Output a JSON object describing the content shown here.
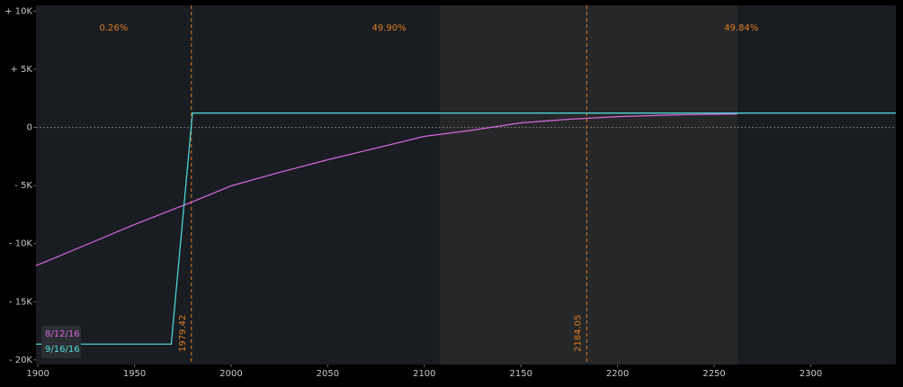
{
  "chart_data": {
    "type": "line",
    "xlim": [
      1899,
      2344
    ],
    "ylim": [
      -20400,
      10500
    ],
    "xticks": [
      1900,
      1950,
      2000,
      2050,
      2100,
      2150,
      2200,
      2250,
      2300
    ],
    "yticks": [
      {
        "value": 10000,
        "label": "+ 10K"
      },
      {
        "value": 5000,
        "label": "+ 5K"
      },
      0,
      {
        "value": -5000,
        "label": "- 5K"
      },
      {
        "value": -10000,
        "label": "- 10K"
      },
      {
        "value": -15000,
        "label": "- 15K"
      },
      {
        "value": -20000,
        "label": "- 20K"
      }
    ],
    "zero_line": true,
    "highlight_range": [
      2108,
      2262
    ],
    "vlines": [
      1979.42,
      2184.05
    ],
    "zone_labels": [
      "0.26%",
      "49.90%",
      "49.84%"
    ],
    "legend": "bottom-left",
    "series": [
      {
        "name": "8/12/16",
        "color": "#d966e0",
        "x": [
          1899,
          1925,
          1950,
          1980,
          2000,
          2025,
          2050,
          2075,
          2100,
          2125,
          2150,
          2175,
          2200,
          2230,
          2262
        ],
        "values": [
          -11900,
          -10100,
          -8350,
          -6400,
          -5030,
          -3870,
          -2780,
          -1780,
          -770,
          -230,
          390,
          700,
          930,
          1080,
          1160
        ]
      },
      {
        "name": "9/16/16",
        "color": "#4fe0e0",
        "x": [
          1899,
          1969,
          1980,
          2344
        ],
        "values": [
          -18640,
          -18640,
          1240,
          1240
        ]
      }
    ]
  }
}
